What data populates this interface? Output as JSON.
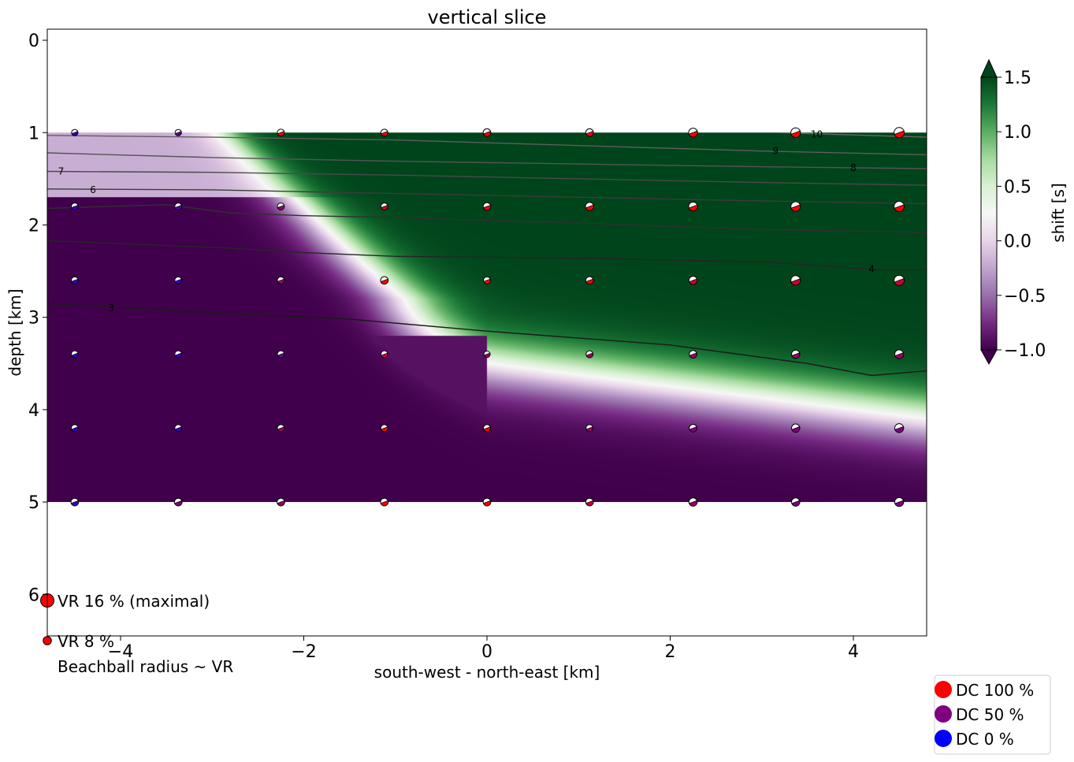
{
  "chart_data": {
    "type": "heatmap",
    "title": "vertical slice",
    "xlabel": "south-west - north-east [km]",
    "ylabel": "depth [km]",
    "xlim": [
      -4.8,
      4.8
    ],
    "ylim": [
      6.45,
      -0.12
    ],
    "y_inverted": true,
    "x_ticks": [
      -4,
      -2,
      0,
      2,
      4
    ],
    "x_tick_labels": [
      "−4",
      "−2",
      "0",
      "2",
      "4"
    ],
    "y_ticks": [
      0,
      1,
      2,
      3,
      4,
      5,
      6
    ],
    "y_tick_labels": [
      "0",
      "1",
      "2",
      "3",
      "4",
      "5",
      "6"
    ],
    "field_extent": {
      "x": [
        -4.8,
        4.8
      ],
      "depth": [
        1.0,
        5.0
      ]
    },
    "grid": false,
    "colorbar": {
      "label": "shift [s]",
      "range": [
        -1.0,
        1.5
      ],
      "ticks": [
        1.5,
        1.0,
        0.5,
        0.0,
        -0.5,
        -1.0
      ],
      "tick_labels": [
        "1.5",
        "1.0",
        "0.5",
        "0.0",
        "−0.5",
        "−1.0"
      ],
      "colormap": "PRGn",
      "extend": "both"
    },
    "shift_profile": {
      "x_at_1km": [
        -3.2,
        -2.5
      ],
      "x_at_2km": [
        -2.3,
        -1.3
      ],
      "x_at_2_8km": [
        -1.6,
        -0.4
      ],
      "depth_center": [
        {
          "x": -4.8,
          "depth": 1.3
        },
        {
          "x": 0.0,
          "depth": 3.5
        },
        {
          "x": 4.8,
          "depth": 4.1
        }
      ]
    },
    "contours": [
      {
        "level": "10",
        "points": [
          [
            3.2,
            1.0
          ],
          [
            3.8,
            1.02
          ],
          [
            4.8,
            1.05
          ]
        ],
        "label_at": [
          3.6,
          1.02
        ]
      },
      {
        "level": "9",
        "points": [
          [
            -4.8,
            1.03
          ],
          [
            -3.0,
            1.05
          ],
          [
            -1.0,
            1.08
          ],
          [
            1.0,
            1.14
          ],
          [
            3.0,
            1.2
          ],
          [
            4.8,
            1.24
          ]
        ],
        "label_at": [
          3.15,
          1.2
        ]
      },
      {
        "level": "8",
        "points": [
          [
            -4.8,
            1.22
          ],
          [
            -3.0,
            1.27
          ],
          [
            -1.0,
            1.31
          ],
          [
            1.0,
            1.34
          ],
          [
            3.0,
            1.37
          ],
          [
            4.8,
            1.39
          ]
        ],
        "label_at": [
          4.0,
          1.38
        ]
      },
      {
        "level": "7",
        "points": [
          [
            -4.8,
            1.42
          ],
          [
            -3.0,
            1.43
          ],
          [
            -1.0,
            1.46
          ],
          [
            1.0,
            1.5
          ],
          [
            3.0,
            1.54
          ],
          [
            4.8,
            1.57
          ]
        ],
        "label_at": [
          -4.65,
          1.42
        ]
      },
      {
        "level": "6",
        "points": [
          [
            -4.8,
            1.61
          ],
          [
            -3.0,
            1.62
          ],
          [
            -1.0,
            1.66
          ],
          [
            1.0,
            1.7
          ],
          [
            3.0,
            1.74
          ],
          [
            4.8,
            1.77
          ]
        ],
        "label_at": [
          -4.3,
          1.62
        ]
      },
      {
        "level": "5",
        "points": [
          [
            -4.8,
            1.82
          ],
          [
            -3.5,
            1.78
          ],
          [
            -2.8,
            1.87
          ],
          [
            -2.0,
            1.9
          ],
          [
            -1.0,
            1.92
          ],
          [
            1.0,
            1.98
          ],
          [
            3.0,
            2.05
          ],
          [
            4.8,
            2.08
          ]
        ],
        "label_at": null
      },
      {
        "level": "4",
        "points": [
          [
            -4.8,
            2.17
          ],
          [
            -2.8,
            2.25
          ],
          [
            -2.0,
            2.3
          ],
          [
            -1.0,
            2.34
          ],
          [
            1.0,
            2.36
          ],
          [
            3.0,
            2.4
          ],
          [
            4.2,
            2.48
          ],
          [
            4.8,
            2.48
          ]
        ],
        "label_at": [
          4.2,
          2.48
        ]
      },
      {
        "level": "3",
        "points": [
          [
            -4.8,
            2.85
          ],
          [
            -3.0,
            2.95
          ],
          [
            -1.5,
            3.02
          ],
          [
            0.0,
            3.15
          ],
          [
            2.0,
            3.3
          ],
          [
            3.5,
            3.5
          ],
          [
            4.2,
            3.63
          ],
          [
            4.8,
            3.58
          ]
        ],
        "label_at": [
          -4.1,
          2.9
        ]
      }
    ],
    "beachballs": {
      "x": [
        -4.5,
        -3.37,
        -2.25,
        -1.12,
        0.0,
        1.12,
        2.25,
        3.37,
        4.5
      ],
      "depth": [
        1.0,
        1.8,
        2.6,
        3.4,
        4.2,
        5.0
      ],
      "vr_percent": [
        [
          5,
          5,
          6,
          6,
          7,
          7,
          9,
          10,
          11
        ],
        [
          6,
          6,
          6,
          6,
          7,
          8,
          9,
          10,
          11
        ],
        [
          6,
          6,
          6,
          7,
          6,
          7,
          8,
          10,
          11
        ],
        [
          6,
          6,
          6,
          6,
          5,
          6,
          7,
          8,
          9
        ],
        [
          6,
          6,
          6,
          6,
          6,
          6,
          7,
          8,
          9
        ],
        [
          7,
          7,
          7,
          7,
          7,
          7,
          8,
          8,
          9
        ]
      ],
      "dc_percent": [
        [
          20,
          40,
          100,
          100,
          100,
          100,
          100,
          100,
          100
        ],
        [
          20,
          30,
          60,
          80,
          90,
          100,
          100,
          100,
          100
        ],
        [
          20,
          20,
          60,
          100,
          100,
          100,
          80,
          80,
          80
        ],
        [
          20,
          20,
          40,
          80,
          60,
          60,
          60,
          60,
          60
        ],
        [
          20,
          20,
          60,
          100,
          100,
          60,
          50,
          50,
          50
        ],
        [
          20,
          50,
          60,
          100,
          100,
          80,
          60,
          50,
          50
        ]
      ]
    },
    "size_legend": {
      "entries": [
        {
          "text": "VR 16 % (maximal)",
          "vr": 16
        },
        {
          "text": "VR  8 %",
          "vr": 8
        }
      ],
      "note": "Beachball radius ~ VR"
    },
    "color_legend": {
      "placement": "bottom-right",
      "entries": [
        {
          "text": "DC 100 %",
          "color": "#ff0000"
        },
        {
          "text": "DC 50 %",
          "color": "#800080"
        },
        {
          "text": "DC 0 %",
          "color": "#0000ff"
        }
      ]
    }
  }
}
